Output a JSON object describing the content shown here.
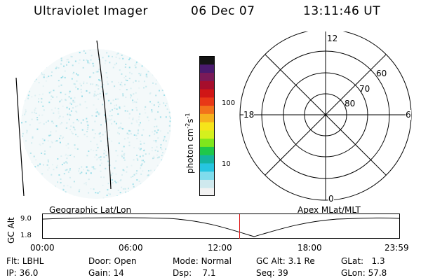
{
  "header": {
    "instrument": "Ultraviolet Imager",
    "date": "06 Dec 07",
    "time": "13:11:46 UT"
  },
  "colorbar": {
    "unit_base": "photon cm",
    "unit_sup1": "-2",
    "unit_mid": "s",
    "unit_sup2": "-1",
    "ticks": [
      "100",
      "10"
    ],
    "colors": [
      "#f2f2f2",
      "#cfe9ee",
      "#7fdcec",
      "#26c5e0",
      "#14b4a0",
      "#1fc84a",
      "#7fe61c",
      "#d4f01e",
      "#f6e41a",
      "#f6b11d",
      "#f2731b",
      "#e83817",
      "#d01616",
      "#a60e2c",
      "#7a1a58",
      "#4a1a6e",
      "#141414"
    ]
  },
  "polar_plot": {
    "mlt_labels": {
      "top": "12",
      "right": "6",
      "bottom": "0",
      "left": "18"
    },
    "lat_labels": [
      "60",
      "70",
      "80"
    ]
  },
  "timeline": {
    "left_title": "Geographic Lat/Lon",
    "right_title": "Apex MLat/MLT",
    "axis_label": "GC Alt",
    "y_ticks": [
      "9.0",
      "1.8"
    ],
    "x_ticks": [
      "00:00",
      "06:00",
      "12:00",
      "18:00",
      "23:59"
    ],
    "cursor_color": "#dd1111",
    "current_time_fraction": 0.55
  },
  "info": {
    "row1": [
      {
        "label": "Flt:",
        "value": "LBHL"
      },
      {
        "label": "Door:",
        "value": "Open"
      },
      {
        "label": "Mode:",
        "value": "Normal"
      },
      {
        "label": "GC Alt:",
        "value": "3.1 Re"
      },
      {
        "label": "GLat:",
        "value": "1.3"
      }
    ],
    "row2": [
      {
        "label": "IP:",
        "value": "36.0"
      },
      {
        "label": "Gain:",
        "value": "14"
      },
      {
        "label": "Dsp:",
        "value": "7.1"
      },
      {
        "label": "Seq:",
        "value": "39"
      },
      {
        "label": "GLon:",
        "value": "57.8"
      }
    ]
  }
}
